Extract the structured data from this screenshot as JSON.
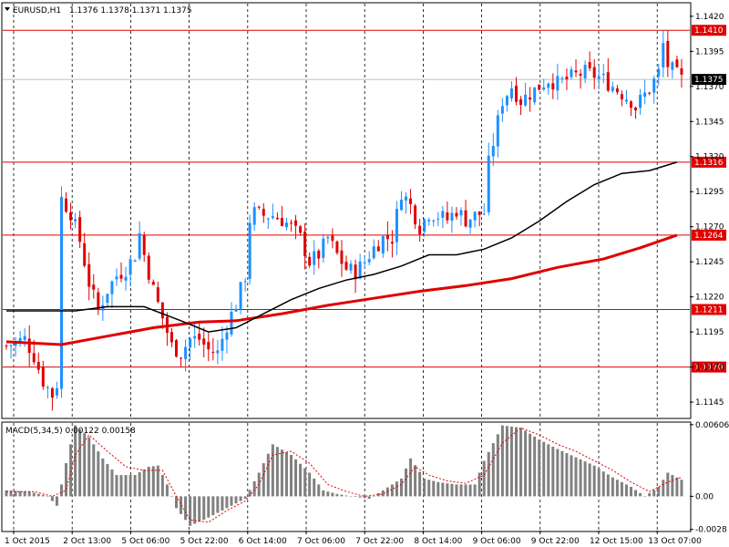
{
  "header": {
    "symbol": "EURUSD,H1",
    "ohlc": "1.1376 1.1378 1.1371 1.1375"
  },
  "macd_header": "MACD(5,34,5) 0.00122 0.00158",
  "colors": {
    "bull": "#1E90FF",
    "bear": "#E00000",
    "ma_fast": "#000000",
    "ma_slow": "#E00000",
    "level": "#E00000",
    "macd_hist": "#808080",
    "macd_signal": "#E00000",
    "grid": "#000000"
  },
  "chart_data": [
    {
      "type": "candlestick",
      "title": "EURUSD,H1",
      "ylim": [
        1.1134,
        1.1429
      ],
      "y_ticks": [
        "1.1420",
        "1.1395",
        "1.1370",
        "1.1345",
        "1.1320",
        "1.1295",
        "1.1270",
        "1.1245",
        "1.1220",
        "1.1195",
        "1.1170",
        "1.1145"
      ],
      "x_ticks": [
        "1 Oct 2015",
        "2 Oct 13:00",
        "5 Oct 06:00",
        "5 Oct 22:00",
        "6 Oct 14:00",
        "7 Oct 06:00",
        "7 Oct 22:00",
        "8 Oct 14:00",
        "9 Oct 06:00",
        "9 Oct 22:00",
        "12 Oct 15:00",
        "13 Oct 07:00"
      ],
      "horizontal_levels": [
        "1.1410",
        "1.1316",
        "1.1264",
        "1.1211",
        "1.1170"
      ],
      "current_price": "1.1375",
      "close_path": [
        [
          0,
          1.1185
        ],
        [
          4,
          1.119
        ],
        [
          6,
          1.1178
        ],
        [
          8,
          1.116
        ],
        [
          10,
          1.115
        ],
        [
          11,
          1.1158
        ],
        [
          12,
          1.129
        ],
        [
          14,
          1.128
        ],
        [
          16,
          1.126
        ],
        [
          18,
          1.123
        ],
        [
          20,
          1.121
        ],
        [
          22,
          1.1225
        ],
        [
          24,
          1.1235
        ],
        [
          26,
          1.124
        ],
        [
          28,
          1.125
        ],
        [
          29,
          1.1265
        ],
        [
          30,
          1.125
        ],
        [
          32,
          1.1225
        ],
        [
          34,
          1.1205
        ],
        [
          36,
          1.1185
        ],
        [
          38,
          1.118
        ],
        [
          40,
          1.119
        ],
        [
          42,
          1.119
        ],
        [
          44,
          1.1182
        ],
        [
          46,
          1.118
        ],
        [
          48,
          1.12
        ],
        [
          50,
          1.1215
        ],
        [
          52,
          1.1235
        ],
        [
          53,
          1.1275
        ],
        [
          54,
          1.128
        ],
        [
          56,
          1.1278
        ],
        [
          58,
          1.1278
        ],
        [
          60,
          1.1275
        ],
        [
          62,
          1.127
        ],
        [
          64,
          1.1262
        ],
        [
          66,
          1.1245
        ],
        [
          68,
          1.125
        ],
        [
          70,
          1.1262
        ],
        [
          72,
          1.125
        ],
        [
          74,
          1.124
        ],
        [
          76,
          1.1238
        ],
        [
          78,
          1.1245
        ],
        [
          80,
          1.1255
        ],
        [
          82,
          1.1262
        ],
        [
          84,
          1.1262
        ],
        [
          86,
          1.1295
        ],
        [
          88,
          1.1285
        ],
        [
          90,
          1.127
        ],
        [
          92,
          1.128
        ],
        [
          94,
          1.1278
        ],
        [
          96,
          1.1275
        ],
        [
          98,
          1.1282
        ],
        [
          100,
          1.1275
        ],
        [
          102,
          1.1278
        ],
        [
          104,
          1.128
        ],
        [
          105,
          1.1315
        ],
        [
          106,
          1.133
        ],
        [
          108,
          1.136
        ],
        [
          110,
          1.137
        ],
        [
          112,
          1.136
        ],
        [
          114,
          1.1365
        ],
        [
          116,
          1.137
        ],
        [
          118,
          1.1375
        ],
        [
          120,
          1.1372
        ],
        [
          122,
          1.1375
        ],
        [
          124,
          1.1378
        ],
        [
          126,
          1.138
        ],
        [
          128,
          1.1378
        ],
        [
          130,
          1.1375
        ],
        [
          132,
          1.137
        ],
        [
          134,
          1.1365
        ],
        [
          136,
          1.136
        ],
        [
          137,
          1.1355
        ],
        [
          138,
          1.136
        ],
        [
          140,
          1.1368
        ],
        [
          142,
          1.138
        ],
        [
          143,
          1.14
        ],
        [
          144,
          1.1385
        ],
        [
          146,
          1.1378
        ],
        [
          147,
          1.1375
        ]
      ],
      "ma_fast": [
        [
          0,
          1.121
        ],
        [
          15,
          1.121
        ],
        [
          22,
          1.1213
        ],
        [
          30,
          1.1213
        ],
        [
          38,
          1.1203
        ],
        [
          44,
          1.1195
        ],
        [
          50,
          1.1198
        ],
        [
          56,
          1.1208
        ],
        [
          62,
          1.1218
        ],
        [
          68,
          1.1226
        ],
        [
          74,
          1.1232
        ],
        [
          80,
          1.1236
        ],
        [
          86,
          1.1242
        ],
        [
          92,
          1.125
        ],
        [
          98,
          1.125
        ],
        [
          104,
          1.1254
        ],
        [
          110,
          1.1262
        ],
        [
          116,
          1.1274
        ],
        [
          122,
          1.1288
        ],
        [
          128,
          1.13
        ],
        [
          134,
          1.1308
        ],
        [
          140,
          1.131
        ],
        [
          146,
          1.1316
        ]
      ],
      "ma_slow": [
        [
          0,
          1.1188
        ],
        [
          12,
          1.1186
        ],
        [
          22,
          1.1192
        ],
        [
          32,
          1.1198
        ],
        [
          42,
          1.1202
        ],
        [
          50,
          1.1203
        ],
        [
          60,
          1.1208
        ],
        [
          70,
          1.1214
        ],
        [
          80,
          1.1219
        ],
        [
          90,
          1.1224
        ],
        [
          100,
          1.1228
        ],
        [
          110,
          1.1233
        ],
        [
          120,
          1.1241
        ],
        [
          130,
          1.1247
        ],
        [
          138,
          1.1255
        ],
        [
          146,
          1.1264
        ]
      ]
    },
    {
      "type": "bar",
      "title": "MACD(5,34,5)",
      "ylim": [
        -0.0029,
        0.0062
      ],
      "y_ticks": [
        "0.00606",
        "0.00",
        "-0.0028"
      ],
      "macd_path": [
        [
          0,
          0.0005
        ],
        [
          5,
          0.0004
        ],
        [
          9,
          0.0
        ],
        [
          11,
          -0.0008
        ],
        [
          13,
          0.0028
        ],
        [
          15,
          0.006
        ],
        [
          18,
          0.005
        ],
        [
          21,
          0.0032
        ],
        [
          24,
          0.0018
        ],
        [
          28,
          0.0018
        ],
        [
          31,
          0.0025
        ],
        [
          33,
          0.0026
        ],
        [
          35,
          0.001
        ],
        [
          37,
          -0.001
        ],
        [
          40,
          -0.0025
        ],
        [
          44,
          -0.0018
        ],
        [
          48,
          -0.001
        ],
        [
          52,
          -0.0002
        ],
        [
          55,
          0.002
        ],
        [
          58,
          0.0044
        ],
        [
          62,
          0.0035
        ],
        [
          66,
          0.002
        ],
        [
          69,
          0.0005
        ],
        [
          72,
          0.0002
        ],
        [
          75,
          0.0
        ],
        [
          79,
          -0.0002
        ],
        [
          82,
          0.0005
        ],
        [
          86,
          0.0015
        ],
        [
          88,
          0.0032
        ],
        [
          91,
          0.0015
        ],
        [
          94,
          0.0012
        ],
        [
          98,
          0.001
        ],
        [
          102,
          0.001
        ],
        [
          104,
          0.003
        ],
        [
          108,
          0.006
        ],
        [
          112,
          0.0058
        ],
        [
          116,
          0.0048
        ],
        [
          120,
          0.004
        ],
        [
          124,
          0.0033
        ],
        [
          128,
          0.0026
        ],
        [
          132,
          0.0016
        ],
        [
          136,
          0.0008
        ],
        [
          139,
          0.0
        ],
        [
          142,
          0.0008
        ],
        [
          144,
          0.002
        ],
        [
          147,
          0.0014
        ]
      ],
      "signal_path": [
        [
          0,
          0.0004
        ],
        [
          6,
          0.0004
        ],
        [
          10,
          0.0
        ],
        [
          13,
          0.0005
        ],
        [
          15,
          0.0035
        ],
        [
          18,
          0.0052
        ],
        [
          22,
          0.0038
        ],
        [
          26,
          0.0025
        ],
        [
          30,
          0.0022
        ],
        [
          34,
          0.0022
        ],
        [
          37,
          0.0
        ],
        [
          40,
          -0.002
        ],
        [
          44,
          -0.0022
        ],
        [
          48,
          -0.0012
        ],
        [
          52,
          -0.0004
        ],
        [
          55,
          0.001
        ],
        [
          58,
          0.0035
        ],
        [
          62,
          0.0038
        ],
        [
          66,
          0.0028
        ],
        [
          70,
          0.001
        ],
        [
          74,
          0.0004
        ],
        [
          78,
          0.0
        ],
        [
          82,
          0.0002
        ],
        [
          86,
          0.001
        ],
        [
          89,
          0.0025
        ],
        [
          92,
          0.0018
        ],
        [
          96,
          0.0013
        ],
        [
          100,
          0.0011
        ],
        [
          104,
          0.0018
        ],
        [
          108,
          0.0045
        ],
        [
          112,
          0.0058
        ],
        [
          116,
          0.0052
        ],
        [
          120,
          0.0044
        ],
        [
          124,
          0.0038
        ],
        [
          128,
          0.003
        ],
        [
          132,
          0.0022
        ],
        [
          136,
          0.0012
        ],
        [
          140,
          0.0004
        ],
        [
          144,
          0.0012
        ],
        [
          147,
          0.0016
        ]
      ]
    }
  ]
}
